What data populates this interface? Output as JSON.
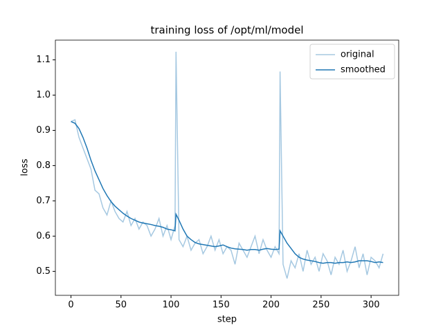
{
  "chart_data": {
    "type": "line",
    "title": "training loss of /opt/ml/model",
    "x_label": "step",
    "y_label": "loss",
    "x": [
      0,
      4,
      8,
      12,
      16,
      20,
      24,
      28,
      32,
      36,
      40,
      44,
      48,
      52,
      56,
      60,
      64,
      68,
      72,
      76,
      80,
      84,
      88,
      92,
      96,
      100,
      104,
      105,
      108,
      112,
      116,
      120,
      124,
      128,
      132,
      136,
      140,
      144,
      148,
      152,
      156,
      160,
      164,
      168,
      172,
      176,
      180,
      184,
      188,
      192,
      196,
      200,
      204,
      208,
      209,
      212,
      216,
      220,
      224,
      228,
      232,
      236,
      240,
      244,
      248,
      252,
      256,
      260,
      264,
      268,
      272,
      276,
      280,
      284,
      288,
      292,
      296,
      300,
      304,
      308,
      312
    ],
    "series": [
      {
        "name": "original",
        "color": "#a5c8e1",
        "values": [
          0.925,
          0.93,
          0.88,
          0.85,
          0.82,
          0.79,
          0.73,
          0.72,
          0.68,
          0.66,
          0.7,
          0.67,
          0.65,
          0.64,
          0.67,
          0.63,
          0.65,
          0.62,
          0.64,
          0.63,
          0.6,
          0.62,
          0.65,
          0.6,
          0.63,
          0.59,
          0.63,
          1.123,
          0.59,
          0.57,
          0.6,
          0.56,
          0.58,
          0.59,
          0.55,
          0.57,
          0.6,
          0.56,
          0.59,
          0.55,
          0.57,
          0.56,
          0.52,
          0.58,
          0.56,
          0.54,
          0.57,
          0.6,
          0.55,
          0.59,
          0.56,
          0.54,
          0.57,
          0.55,
          1.067,
          0.52,
          0.48,
          0.53,
          0.51,
          0.55,
          0.5,
          0.56,
          0.52,
          0.54,
          0.5,
          0.55,
          0.53,
          0.49,
          0.54,
          0.52,
          0.56,
          0.5,
          0.53,
          0.57,
          0.51,
          0.55,
          0.49,
          0.54,
          0.53,
          0.51,
          0.55
        ]
      },
      {
        "name": "smoothed",
        "color": "#1f77b4",
        "values": [
          0.925,
          0.92,
          0.905,
          0.88,
          0.85,
          0.815,
          0.785,
          0.76,
          0.735,
          0.715,
          0.698,
          0.685,
          0.675,
          0.665,
          0.657,
          0.65,
          0.645,
          0.64,
          0.637,
          0.635,
          0.633,
          0.63,
          0.628,
          0.625,
          0.62,
          0.618,
          0.615,
          0.662,
          0.645,
          0.62,
          0.6,
          0.59,
          0.582,
          0.578,
          0.576,
          0.574,
          0.572,
          0.57,
          0.572,
          0.575,
          0.57,
          0.566,
          0.564,
          0.563,
          0.562,
          0.56,
          0.562,
          0.562,
          0.56,
          0.563,
          0.565,
          0.563,
          0.562,
          0.563,
          0.615,
          0.6,
          0.58,
          0.565,
          0.55,
          0.54,
          0.535,
          0.532,
          0.53,
          0.528,
          0.525,
          0.523,
          0.525,
          0.525,
          0.523,
          0.525,
          0.525,
          0.527,
          0.525,
          0.527,
          0.53,
          0.53,
          0.53,
          0.528,
          0.525,
          0.527,
          0.525
        ]
      }
    ],
    "xlim": [
      -15.6,
      327.6
    ],
    "ylim": [
      0.432,
      1.156
    ],
    "xticks": [
      0,
      50,
      100,
      150,
      200,
      250,
      300
    ],
    "yticks": [
      0.5,
      0.6,
      0.7,
      0.8,
      0.9,
      {
        "value": 1,
        "label": "1.0"
      },
      1.1
    ],
    "legend": "upper right"
  }
}
